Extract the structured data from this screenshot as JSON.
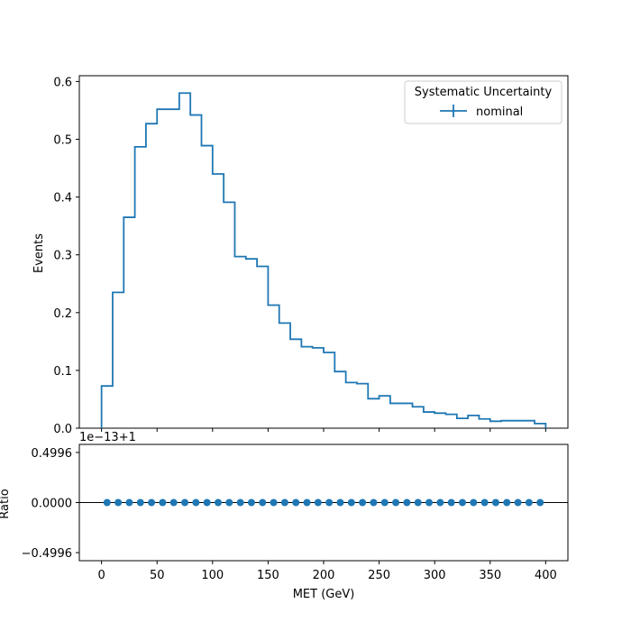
{
  "colors": {
    "series": "#1f77b4",
    "axis": "#000000",
    "reference_line": "#000000",
    "legend_border": "#cccccc"
  },
  "chart_data": [
    {
      "type": "line",
      "drawstyle": "steps",
      "ylabel": "Events",
      "xlim": [
        -20,
        420
      ],
      "ylim": [
        0,
        0.61
      ],
      "yticks": [
        0.0,
        0.1,
        0.2,
        0.3,
        0.4,
        0.5,
        0.6
      ],
      "ytick_labels": [
        "0.0",
        "0.1",
        "0.2",
        "0.3",
        "0.4",
        "0.5",
        "0.6"
      ],
      "legend": {
        "title": "Systematic Uncertainty",
        "position": "top-right"
      },
      "bin_edges": [
        0,
        10,
        20,
        30,
        40,
        50,
        60,
        70,
        80,
        90,
        100,
        110,
        120,
        130,
        140,
        150,
        160,
        170,
        180,
        190,
        200,
        210,
        220,
        230,
        240,
        250,
        260,
        270,
        280,
        290,
        300,
        310,
        320,
        330,
        340,
        350,
        360,
        370,
        380,
        390,
        400
      ],
      "series": [
        {
          "name": "nominal",
          "values": [
            0.073,
            0.235,
            0.365,
            0.487,
            0.527,
            0.552,
            0.552,
            0.58,
            0.542,
            0.489,
            0.44,
            0.391,
            0.297,
            0.293,
            0.28,
            0.213,
            0.182,
            0.154,
            0.141,
            0.139,
            0.131,
            0.098,
            0.079,
            0.077,
            0.051,
            0.056,
            0.043,
            0.043,
            0.037,
            0.028,
            0.026,
            0.024,
            0.017,
            0.022,
            0.016,
            0.012,
            0.013,
            0.013,
            0.013,
            0.008
          ]
        }
      ]
    },
    {
      "type": "scatter",
      "xlabel": "MET (GeV)",
      "ylabel": "Ratio",
      "offset_text": "1e−13+1",
      "xlim": [
        -20,
        420
      ],
      "xticks": [
        0,
        50,
        100,
        150,
        200,
        250,
        300,
        350,
        400
      ],
      "xtick_labels": [
        "0",
        "50",
        "100",
        "150",
        "200",
        "250",
        "300",
        "350",
        "400"
      ],
      "ylim": [
        -0.58,
        0.58
      ],
      "yticks": [
        0.4996,
        0.0,
        -0.4996
      ],
      "ytick_labels": [
        "0.4996",
        "0.0000",
        "−0.4996"
      ],
      "reference_line_y": 0.0,
      "x": [
        5,
        15,
        25,
        35,
        45,
        55,
        65,
        75,
        85,
        95,
        105,
        115,
        125,
        135,
        145,
        155,
        165,
        175,
        185,
        195,
        205,
        215,
        225,
        235,
        245,
        255,
        265,
        275,
        285,
        295,
        305,
        315,
        325,
        335,
        345,
        355,
        365,
        375,
        385,
        395
      ],
      "y": [
        0,
        0,
        0,
        0,
        0,
        0,
        0,
        0,
        0,
        0,
        0,
        0,
        0,
        0,
        0,
        0,
        0,
        0,
        0,
        0,
        0,
        0,
        0,
        0,
        0,
        0,
        0,
        0,
        0,
        0,
        0,
        0,
        0,
        0,
        0,
        0,
        0,
        0,
        0,
        0
      ]
    }
  ]
}
